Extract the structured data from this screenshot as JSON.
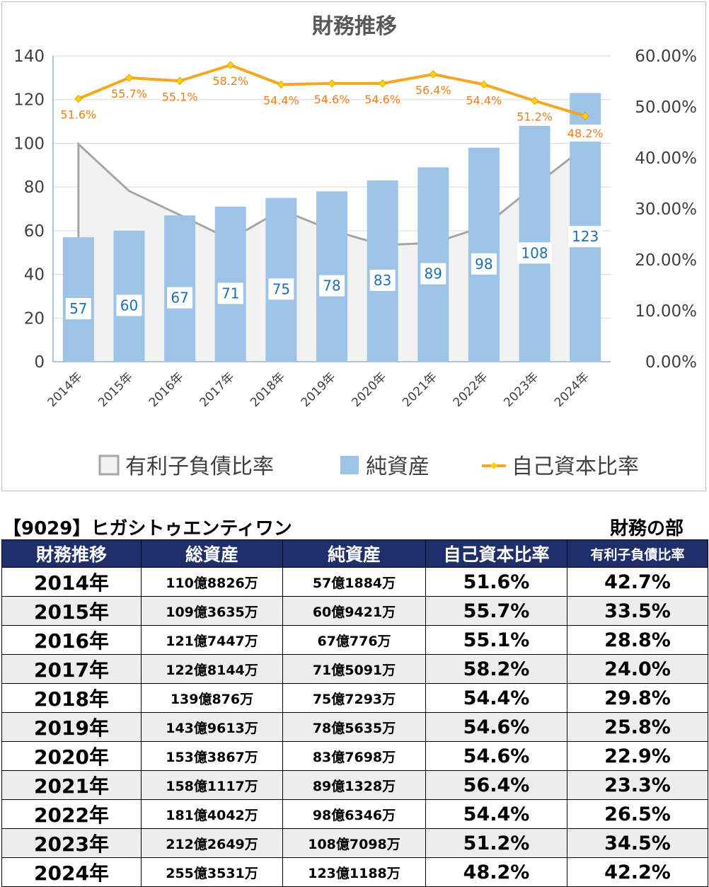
{
  "chart_data": {
    "type": "bar",
    "title": "財務推移",
    "categories": [
      "2014年",
      "2015年",
      "2016年",
      "2017年",
      "2018年",
      "2019年",
      "2020年",
      "2021年",
      "2022年",
      "2023年",
      "2024年"
    ],
    "series": [
      {
        "name": "有利子負債比率",
        "kind": "area",
        "axis": "right",
        "color": "#a6a6a6",
        "values": [
          42.7,
          33.5,
          28.8,
          24.0,
          29.8,
          25.8,
          22.9,
          23.3,
          26.5,
          34.5,
          42.2
        ]
      },
      {
        "name": "純資産",
        "kind": "bar",
        "axis": "left",
        "color": "#9dc3e6",
        "values": [
          57,
          60,
          67,
          71,
          75,
          78,
          83,
          89,
          98,
          108,
          123
        ],
        "labels": [
          "57",
          "60",
          "67",
          "71",
          "75",
          "78",
          "83",
          "89",
          "98",
          "108",
          "123"
        ]
      },
      {
        "name": "自己資本比率",
        "kind": "line",
        "axis": "right",
        "color": "#f5a623",
        "values": [
          51.6,
          55.7,
          55.1,
          58.2,
          54.4,
          54.6,
          54.6,
          56.4,
          54.4,
          51.2,
          48.2
        ],
        "labels": [
          "51.6%",
          "55.7%",
          "55.1%",
          "58.2%",
          "54.4%",
          "54.6%",
          "54.6%",
          "56.4%",
          "54.4%",
          "51.2%",
          "48.2%"
        ]
      }
    ],
    "ylim": [
      0,
      140
    ],
    "yticks": [
      "0",
      "20",
      "40",
      "60",
      "80",
      "100",
      "120",
      "140"
    ],
    "y2lim": [
      0,
      60
    ],
    "y2ticks": [
      "0.00%",
      "10.00%",
      "20.00%",
      "30.00%",
      "40.00%",
      "50.00%",
      "60.00%"
    ],
    "grid": true,
    "legend_position": "bottom"
  },
  "colors": {
    "header_bg": "#1f2f6b",
    "bar": "#9dc3e6",
    "line": "#f5a623",
    "area_fill": "#f2f2f2",
    "area_stroke": "#a6a6a6",
    "bar_label": "#1f6fb5",
    "line_label": "#f07d1a"
  },
  "table": {
    "company": "【9029】ヒガシトゥエンティワン",
    "section": "財務の部",
    "headers": [
      "財務推移",
      "総資産",
      "純資産",
      "自己資本比率",
      "有利子負債比率"
    ],
    "rows": [
      [
        "2014年",
        "110億8826万",
        "57億1884万",
        "51.6%",
        "42.7%"
      ],
      [
        "2015年",
        "109億3635万",
        "60億9421万",
        "55.7%",
        "33.5%"
      ],
      [
        "2016年",
        "121億7447万",
        "67億776万",
        "55.1%",
        "28.8%"
      ],
      [
        "2017年",
        "122億8144万",
        "71億5091万",
        "58.2%",
        "24.0%"
      ],
      [
        "2018年",
        "139億876万",
        "75億7293万",
        "54.4%",
        "29.8%"
      ],
      [
        "2019年",
        "143億9613万",
        "78億5635万",
        "54.6%",
        "25.8%"
      ],
      [
        "2020年",
        "153億3867万",
        "83億7698万",
        "54.6%",
        "22.9%"
      ],
      [
        "2021年",
        "158億1117万",
        "89億1328万",
        "56.4%",
        "23.3%"
      ],
      [
        "2022年",
        "181億4042万",
        "98億6346万",
        "54.4%",
        "26.5%"
      ],
      [
        "2023年",
        "212億2649万",
        "108億7098万",
        "51.2%",
        "34.5%"
      ],
      [
        "2024年",
        "255億3531万",
        "123億1188万",
        "48.2%",
        "42.2%"
      ]
    ]
  }
}
